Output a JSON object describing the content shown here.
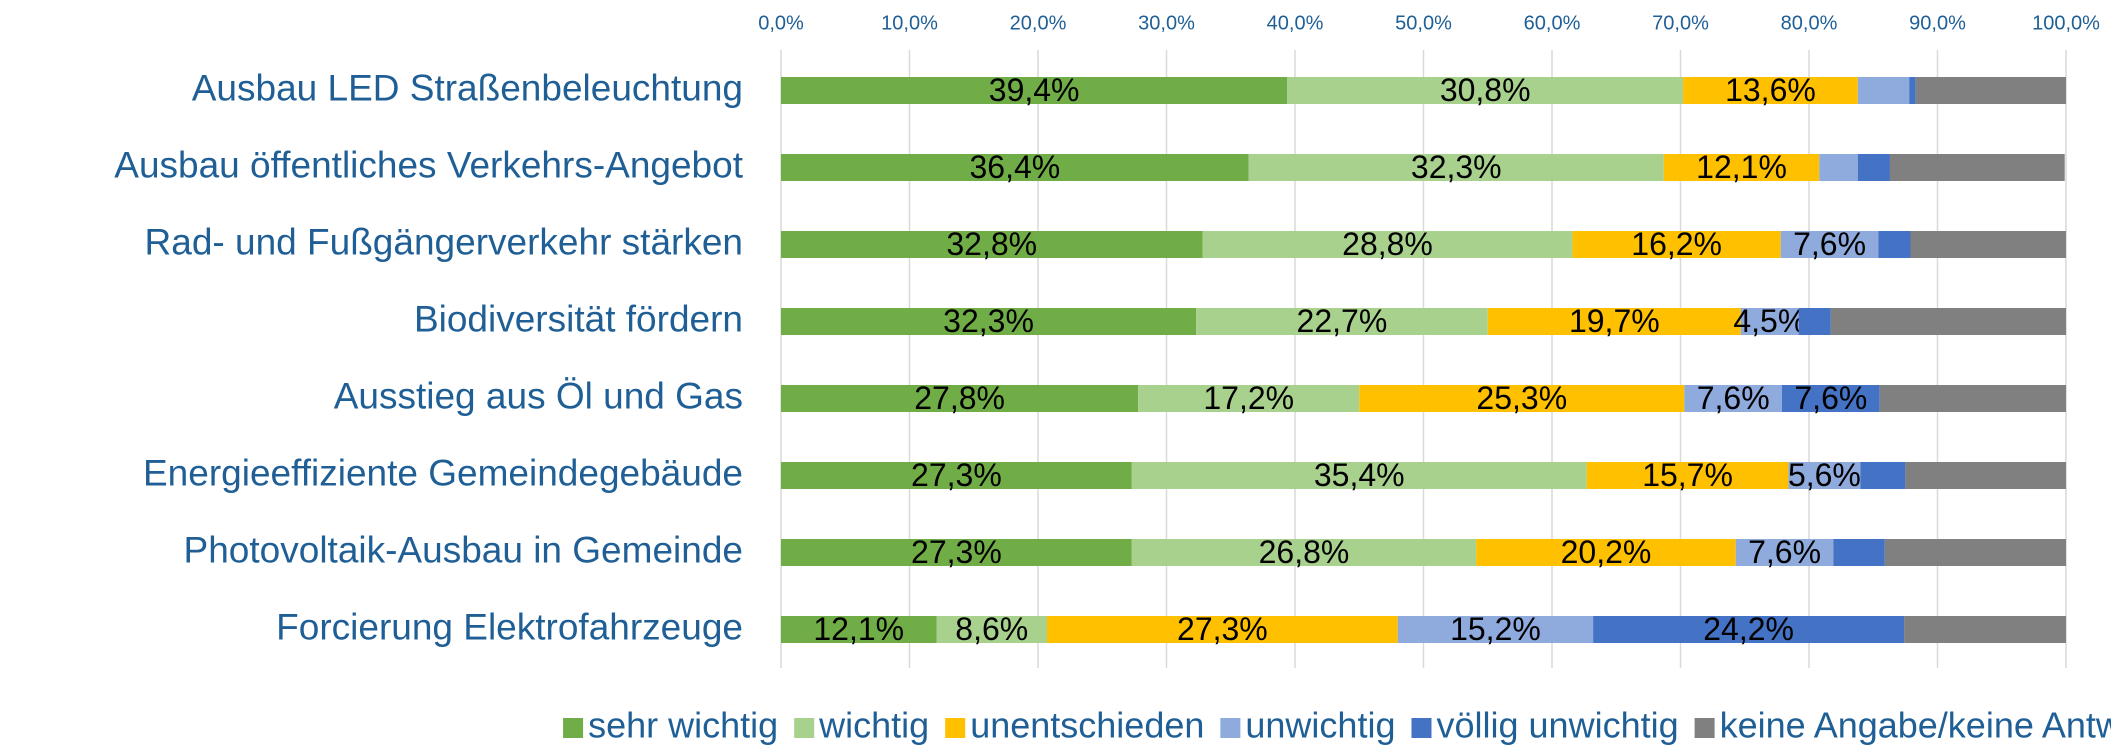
{
  "chart_data": {
    "type": "stacked-bar-horizontal",
    "categories": [
      "Ausbau LED Straßenbeleuchtung",
      "Ausbau öffentliches Verkehrs-Angebot",
      "Rad- und Fußgängerverkehr stärken",
      "Biodiversität fördern",
      "Ausstieg aus Öl und Gas",
      "Energieeffiziente Gemeindegebäude",
      "Photovoltaik-Ausbau in Gemeinde",
      "Forcierung Elektrofahrzeuge"
    ],
    "series": [
      {
        "name": "sehr wichtig",
        "color": "#70ad47",
        "values": [
          39.4,
          36.4,
          32.8,
          32.3,
          27.8,
          27.3,
          27.3,
          12.1
        ],
        "value_labels": [
          "39,4%",
          "36,4%",
          "32,8%",
          "32,3%",
          "27,8%",
          "27,3%",
          "27,3%",
          "12,1%"
        ]
      },
      {
        "name": "wichtig",
        "color": "#a9d18e",
        "values": [
          30.8,
          32.3,
          28.8,
          22.7,
          17.2,
          35.4,
          26.8,
          8.6
        ],
        "value_labels": [
          "30,8%",
          "32,3%",
          "28,8%",
          "22,7%",
          "17,2%",
          "35,4%",
          "26,8%",
          "8,6%"
        ]
      },
      {
        "name": "unentschieden",
        "color": "#ffc000",
        "values": [
          13.6,
          12.1,
          16.2,
          19.7,
          25.3,
          15.7,
          20.2,
          27.3
        ],
        "value_labels": [
          "13,6%",
          "12,1%",
          "16,2%",
          "19,7%",
          "25,3%",
          "15,7%",
          "20,2%",
          "27,3%"
        ]
      },
      {
        "name": "unwichtig",
        "color": "#8faadc",
        "values": [
          4.0,
          3.0,
          7.6,
          4.5,
          7.6,
          5.6,
          7.6,
          15.2
        ],
        "value_labels": [
          null,
          null,
          "7,6%",
          "4,5%",
          "7,6%",
          "5,6%",
          "7,6%",
          "15,2%"
        ]
      },
      {
        "name": "völlig unwichtig",
        "color": "#4472c4",
        "values": [
          0.5,
          2.5,
          2.5,
          2.5,
          7.6,
          3.5,
          4.0,
          24.2
        ],
        "value_labels": [
          null,
          null,
          null,
          null,
          "7,6%",
          null,
          null,
          "24,2%"
        ]
      },
      {
        "name": "keine Angabe/keine Antwort",
        "color": "#808080",
        "values": [
          11.7,
          13.6,
          12.1,
          18.3,
          14.5,
          12.5,
          14.1,
          12.6
        ],
        "value_labels": [
          null,
          null,
          null,
          null,
          null,
          null,
          null,
          null
        ]
      }
    ],
    "xlim": [
      0,
      100
    ],
    "xticks": [
      {
        "value": 0,
        "label": "0,0%"
      },
      {
        "value": 10,
        "label": "10,0%"
      },
      {
        "value": 20,
        "label": "20,0%"
      },
      {
        "value": 30,
        "label": "30,0%"
      },
      {
        "value": 40,
        "label": "40,0%"
      },
      {
        "value": 50,
        "label": "50,0%"
      },
      {
        "value": 60,
        "label": "60,0%"
      },
      {
        "value": 70,
        "label": "70,0%"
      },
      {
        "value": 80,
        "label": "80,0%"
      },
      {
        "value": 90,
        "label": "90,0%"
      },
      {
        "value": 100,
        "label": "100,0%"
      }
    ],
    "grid": true,
    "legend": "bottom"
  }
}
